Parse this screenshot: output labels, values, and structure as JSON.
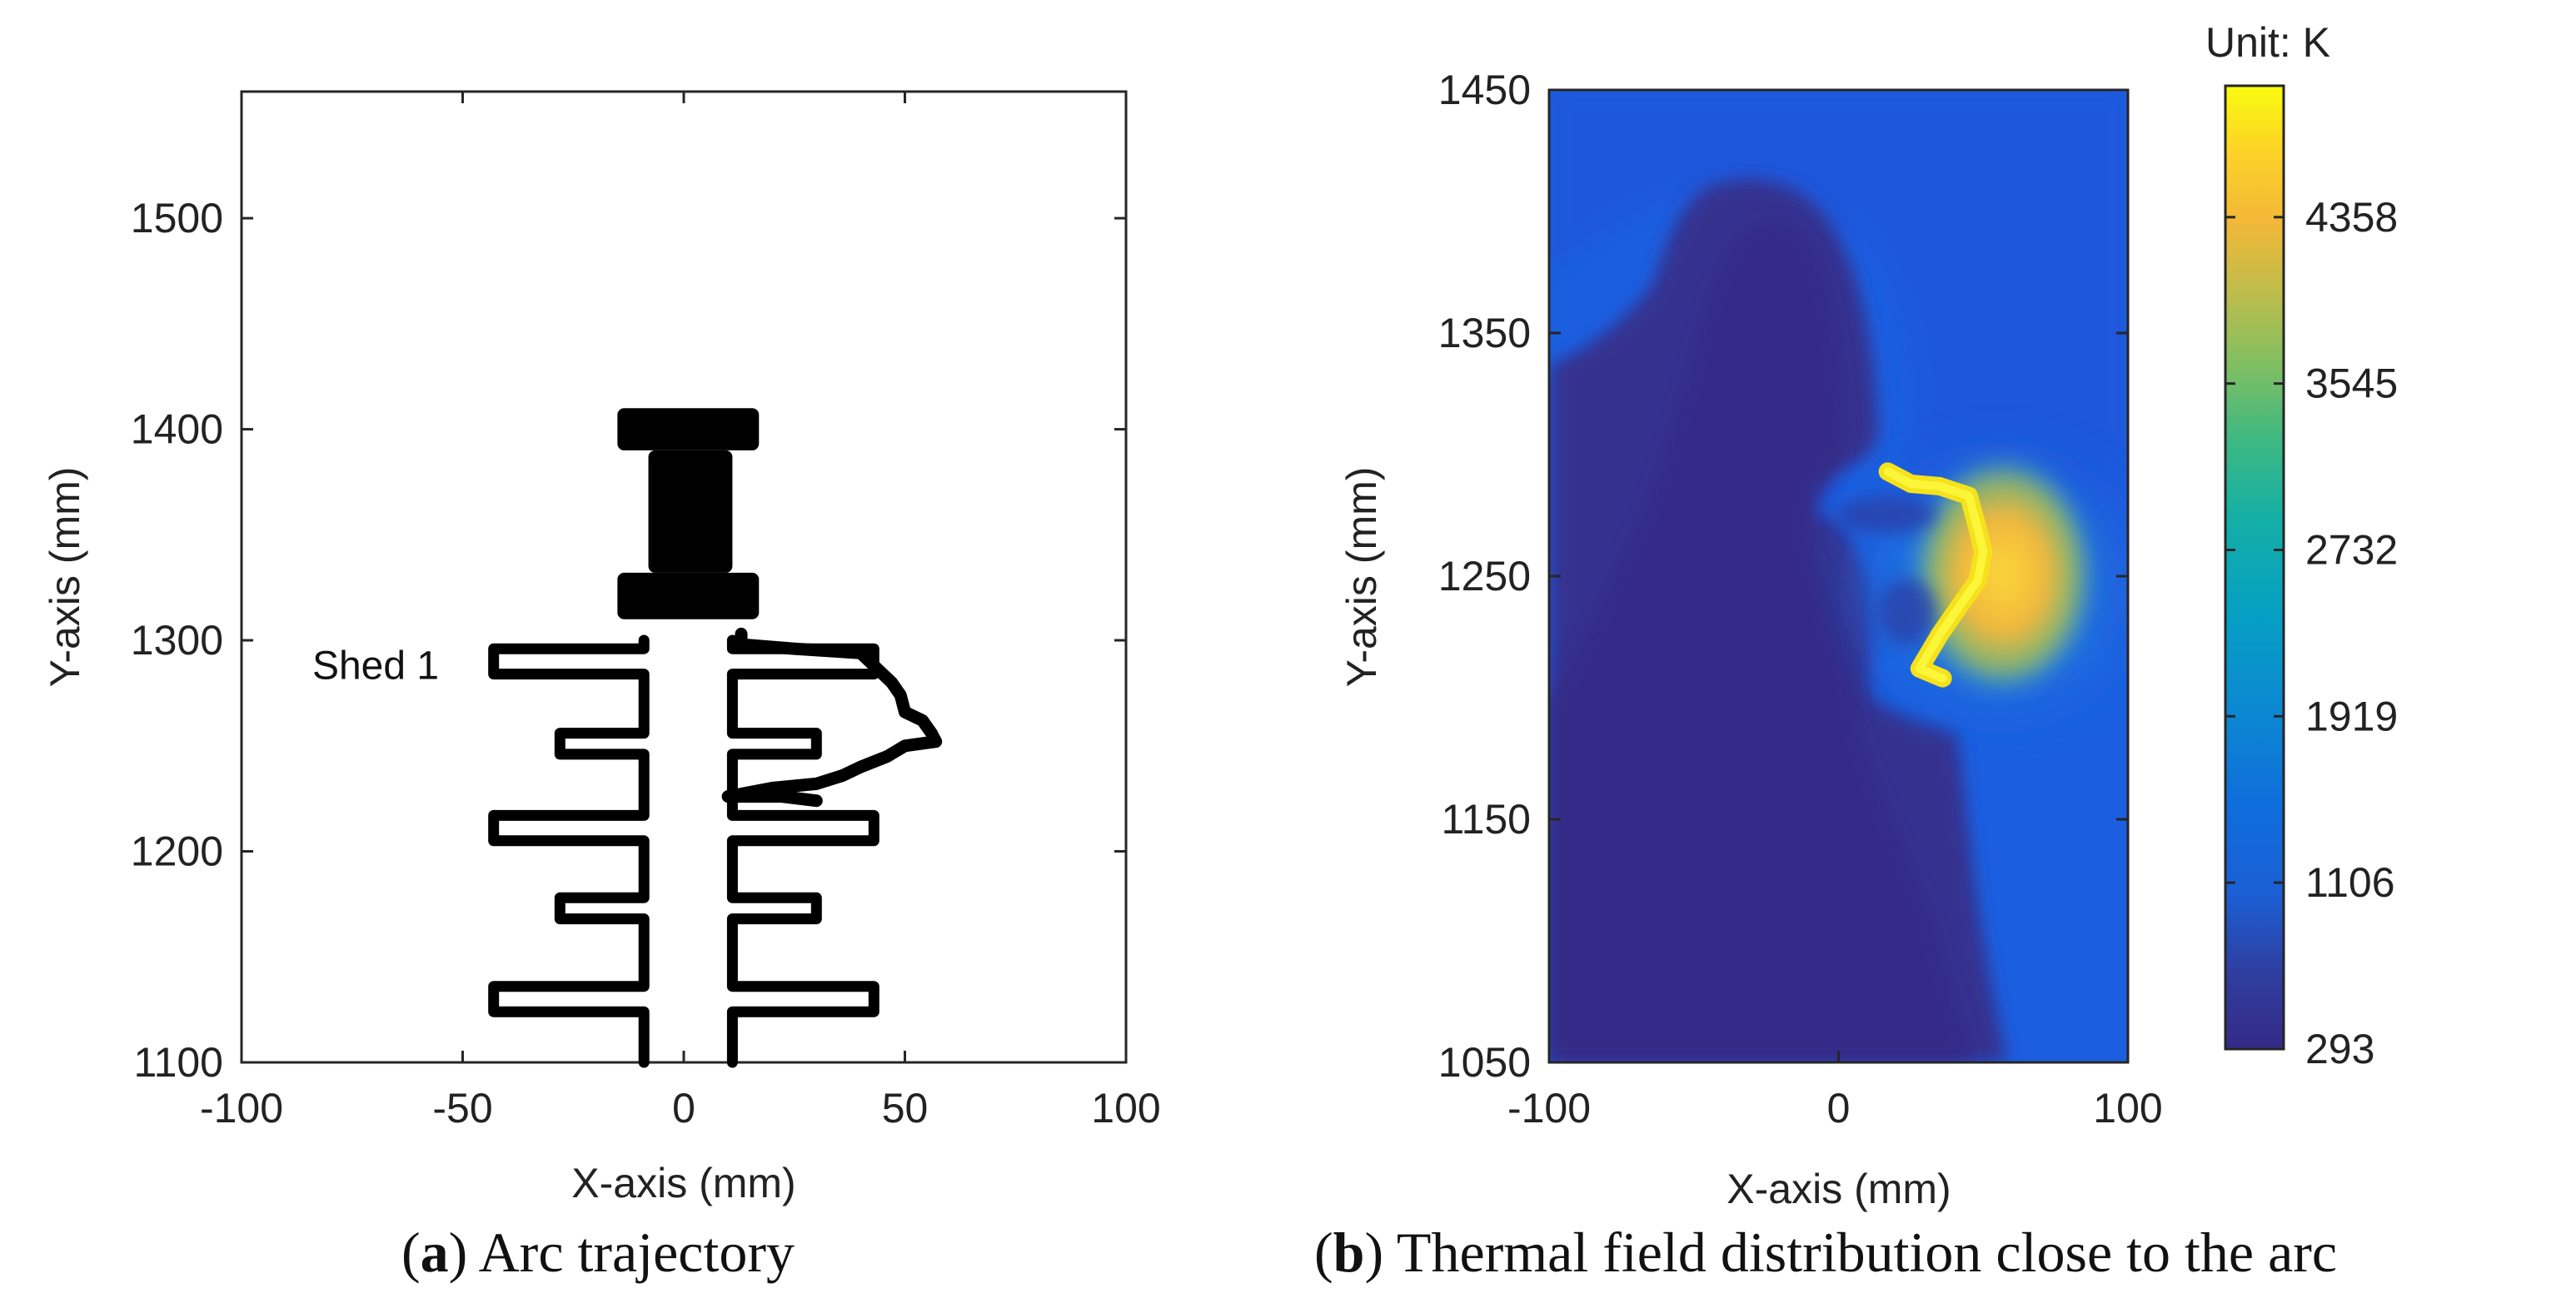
{
  "chart_data": [
    {
      "type": "line",
      "xlabel": "X-axis (mm)",
      "ylabel": "Y-axis (mm)",
      "xlim": [
        -100,
        100
      ],
      "ylim": [
        1100,
        1560
      ],
      "xticks": [
        -100,
        -50,
        0,
        50,
        100
      ],
      "yticks": [
        1100,
        1200,
        1300,
        1400,
        1500
      ],
      "grid": false,
      "caption": {
        "letter": "a",
        "text": "Arc trajectory"
      },
      "annotations": [
        {
          "text": "Shed 1",
          "x": -84,
          "y": 1288
        }
      ],
      "insulator_left_profile": [
        [
          -9,
          1100
        ],
        [
          -9,
          1124
        ],
        [
          -43,
          1124
        ],
        [
          -43,
          1136
        ],
        [
          -9,
          1136
        ],
        [
          -9,
          1168
        ],
        [
          -28,
          1168
        ],
        [
          -28,
          1178
        ],
        [
          -9,
          1178
        ],
        [
          -9,
          1205
        ],
        [
          -43,
          1205
        ],
        [
          -43,
          1217
        ],
        [
          -9,
          1217
        ],
        [
          -9,
          1246
        ],
        [
          -28,
          1246
        ],
        [
          -28,
          1256
        ],
        [
          -9,
          1256
        ],
        [
          -9,
          1284
        ],
        [
          -43,
          1284
        ],
        [
          -43,
          1296
        ],
        [
          -9,
          1296
        ],
        [
          -9,
          1300
        ]
      ],
      "insulator_right_profile": [
        [
          11,
          1100
        ],
        [
          11,
          1124
        ],
        [
          43,
          1124
        ],
        [
          43,
          1136
        ],
        [
          11,
          1136
        ],
        [
          11,
          1168
        ],
        [
          30,
          1168
        ],
        [
          30,
          1178
        ],
        [
          11,
          1178
        ],
        [
          11,
          1205
        ],
        [
          43,
          1205
        ],
        [
          43,
          1217
        ],
        [
          11,
          1217
        ],
        [
          11,
          1246
        ],
        [
          30,
          1246
        ],
        [
          30,
          1256
        ],
        [
          11,
          1256
        ],
        [
          11,
          1284
        ],
        [
          43,
          1284
        ],
        [
          43,
          1296
        ],
        [
          11,
          1296
        ],
        [
          11,
          1300
        ]
      ],
      "electrode": {
        "bottom_cap": {
          "x": [
            -15,
            17
          ],
          "y": [
            1310,
            1332
          ]
        },
        "stem": {
          "x": [
            -8,
            11
          ],
          "y": [
            1332,
            1390
          ]
        },
        "top_cap": {
          "x": [
            -15,
            17
          ],
          "y": [
            1390,
            1410
          ]
        }
      },
      "arc_path": [
        [
          13,
          1303
        ],
        [
          13,
          1298
        ],
        [
          25,
          1296
        ],
        [
          40,
          1294
        ],
        [
          44,
          1286
        ],
        [
          47,
          1280
        ],
        [
          49,
          1274
        ],
        [
          50,
          1266
        ],
        [
          54,
          1262
        ],
        [
          56,
          1256
        ],
        [
          57,
          1252
        ],
        [
          50,
          1250
        ],
        [
          46,
          1245
        ],
        [
          40,
          1240
        ],
        [
          36,
          1236
        ],
        [
          30,
          1232
        ],
        [
          20,
          1230
        ],
        [
          10,
          1226
        ],
        [
          22,
          1226
        ],
        [
          30,
          1224
        ]
      ]
    },
    {
      "type": "heatmap",
      "xlabel": "X-axis (mm)",
      "ylabel": "Y-axis (mm)",
      "xlim": [
        -100,
        100
      ],
      "ylim": [
        1050,
        1450
      ],
      "xticks": [
        -100,
        0,
        100
      ],
      "yticks": [
        1050,
        1150,
        1250,
        1350,
        1450
      ],
      "colorbar": {
        "title": "Unit: K",
        "min": 293,
        "max": 5000,
        "ticks": [
          293,
          1106,
          1919,
          2732,
          3545,
          4358
        ],
        "colormap": "parula"
      },
      "caption": {
        "letter": "b",
        "text": "Thermal field distribution close to the arc"
      },
      "arc_hotspot_path": [
        [
          17,
          1293
        ],
        [
          25,
          1288
        ],
        [
          35,
          1287
        ],
        [
          45,
          1283
        ],
        [
          48,
          1270
        ],
        [
          50,
          1260
        ],
        [
          48,
          1248
        ],
        [
          42,
          1238
        ],
        [
          35,
          1226
        ],
        [
          28,
          1212
        ],
        [
          36,
          1208
        ]
      ],
      "arc_peak_temperature": 5000
    }
  ]
}
